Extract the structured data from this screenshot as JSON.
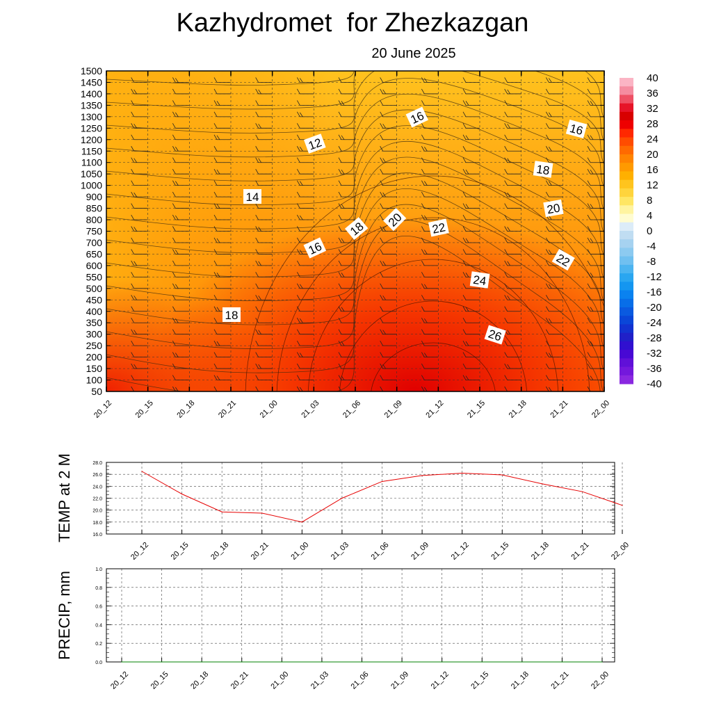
{
  "title": "Kazhydromet  for Zhezkazgan",
  "subtitle": "20 June 2025",
  "chart_data": [
    {
      "type": "heatmap",
      "x_labels": [
        "20_12",
        "20_15",
        "20_18",
        "20_21",
        "21_00",
        "21_03",
        "21_06",
        "21_09",
        "21_12",
        "21_15",
        "21_18",
        "21_21",
        "22_00"
      ],
      "y_labels": [
        "1500",
        "1450",
        "1400",
        "1350",
        "1300",
        "1250",
        "1200",
        "1150",
        "1100",
        "1050",
        "1000",
        "900",
        "850",
        "800",
        "750",
        "700",
        "650",
        "600",
        "550",
        "500",
        "450",
        "400",
        "350",
        "300",
        "250",
        "200",
        "150",
        "100",
        "50"
      ],
      "colorbar_ticks": [
        "40",
        "36",
        "32",
        "28",
        "24",
        "20",
        "16",
        "12",
        "8",
        "4",
        "0",
        "-4",
        "-8",
        "-12",
        "-16",
        "-20",
        "-24",
        "-28",
        "-32",
        "-36",
        "-40"
      ],
      "contour_labels": [
        "12",
        "16",
        "16",
        "14",
        "18",
        "18",
        "20",
        "20",
        "22",
        "22",
        "16",
        "18",
        "24",
        "26",
        "18"
      ],
      "colors": {
        "warm_low": "#ffd23c",
        "warm_mid": "#ff8c0a",
        "warm_high": "#e60000"
      }
    },
    {
      "type": "line",
      "ylabel": "TEMP at 2 M",
      "x": [
        "20_12",
        "20_15",
        "20_18",
        "20_21",
        "21_00",
        "21_03",
        "21_06",
        "21_09",
        "21_12",
        "21_15",
        "21_18",
        "21_21",
        "22_00"
      ],
      "y_ticks": [
        "28.0",
        "26.0",
        "24.0",
        "22.0",
        "20.0",
        "18.0",
        "16.0"
      ],
      "ylim": [
        16,
        28
      ],
      "series": [
        {
          "values": [
            26.5,
            22.7,
            19.7,
            19.5,
            18.0,
            22.0,
            24.8,
            25.8,
            26.2,
            25.9,
            24.4,
            23.1,
            20.8
          ],
          "color": "#e60000"
        }
      ]
    },
    {
      "type": "line",
      "ylabel": "PRECIP, mm",
      "x": [
        "20_12",
        "20_15",
        "20_18",
        "20_21",
        "21_00",
        "21_03",
        "21_06",
        "21_09",
        "21_12",
        "21_15",
        "21_18",
        "21_21",
        "22_00"
      ],
      "y_ticks": [
        "1.0",
        "0.8",
        "0.6",
        "0.4",
        "0.2",
        "0.0"
      ],
      "ylim": [
        0,
        1
      ],
      "series": [
        {
          "values": [
            0,
            0,
            0,
            0,
            0,
            0,
            0,
            0,
            0,
            0,
            0,
            0,
            0
          ],
          "color": "#008000"
        }
      ]
    }
  ]
}
